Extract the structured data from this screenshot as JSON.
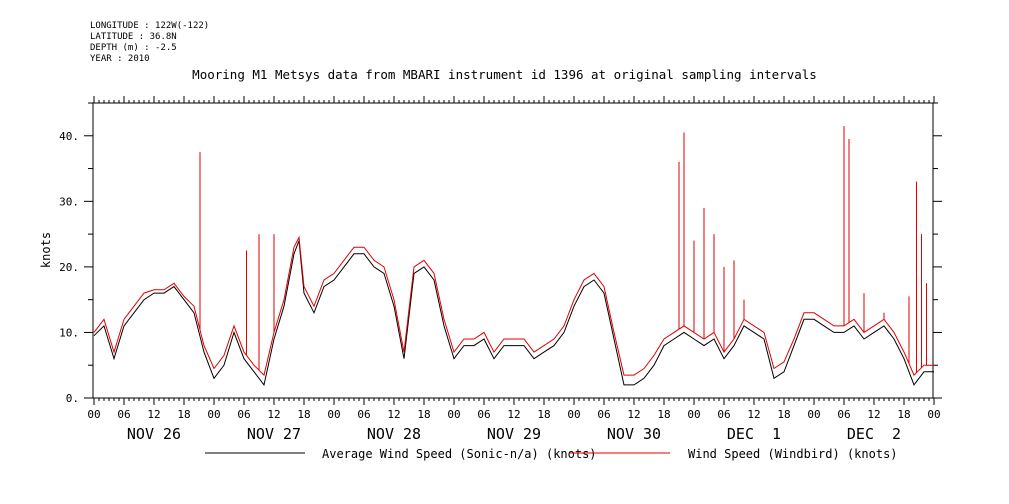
{
  "meta": {
    "longitude": "LONGITUDE : 122W(-122)",
    "latitude": "LATITUDE : 36.8N",
    "depth": "DEPTH (m) : -2.5",
    "year": "YEAR : 2010"
  },
  "chart_data": {
    "type": "line",
    "title": "Mooring M1 Metsys data from MBARI instrument id 1396 at original sampling intervals",
    "ylabel": "knots",
    "xlabel": "",
    "ylim": [
      0,
      45
    ],
    "xlim_hours": [
      0,
      168
    ],
    "y_ticks": [
      "0.",
      "10.",
      "20.",
      "30.",
      "40."
    ],
    "hour_ticks": [
      "00",
      "06",
      "12",
      "18",
      "00",
      "06",
      "12",
      "18",
      "00",
      "06",
      "12",
      "18",
      "00",
      "06",
      "12",
      "18",
      "00",
      "06",
      "12",
      "18",
      "00",
      "06",
      "12",
      "18",
      "00",
      "06",
      "12",
      "18",
      "00"
    ],
    "day_labels": [
      "NOV 26",
      "NOV 27",
      "NOV 28",
      "NOV 29",
      "NOV 30",
      "DEC  1",
      "DEC  2"
    ],
    "grid": false,
    "legend_position": "bottom",
    "series": [
      {
        "name": "Average Wind Speed (Sonic-n/a) (knots)",
        "color": "#000000",
        "x_hours": [
          0,
          2,
          4,
          6,
          8,
          10,
          12,
          14,
          16,
          18,
          20,
          22,
          24,
          26,
          28,
          30,
          32,
          34,
          36,
          38,
          40,
          41,
          42,
          44,
          46,
          48,
          50,
          52,
          54,
          56,
          58,
          60,
          62,
          64,
          66,
          68,
          70,
          72,
          74,
          76,
          78,
          80,
          82,
          84,
          86,
          88,
          90,
          92,
          94,
          96,
          98,
          100,
          102,
          104,
          106,
          108,
          110,
          112,
          114,
          116,
          118,
          120,
          122,
          124,
          126,
          128,
          130,
          132,
          134,
          136,
          138,
          140,
          142,
          144,
          146,
          148,
          150,
          152,
          154,
          156,
          158,
          160,
          162,
          164,
          166,
          168
        ],
        "values": [
          9.5,
          11,
          6,
          11,
          13,
          15,
          16,
          16,
          17,
          15,
          13,
          7,
          3,
          5,
          10,
          6,
          4,
          2,
          9,
          14,
          22,
          24,
          16,
          13,
          17,
          18,
          20,
          22,
          22,
          20,
          19,
          14,
          6,
          19,
          20,
          18,
          11,
          6,
          8,
          8,
          9,
          6,
          8,
          8,
          8,
          6,
          7,
          8,
          10,
          14,
          17,
          18,
          16,
          9,
          2,
          2,
          3,
          5,
          8,
          9,
          10,
          9,
          8,
          9,
          6,
          8,
          11,
          10,
          9,
          3,
          4,
          8,
          12,
          12,
          11,
          10,
          10,
          11,
          9,
          10,
          11,
          9,
          6,
          2,
          4,
          4
        ]
      },
      {
        "name": "Wind Speed (Windbird) (knots)",
        "color": "#e00000",
        "x_hours": [
          0,
          2,
          4,
          6,
          8,
          10,
          12,
          14,
          16,
          18,
          20,
          22,
          24,
          26,
          28,
          30,
          32,
          34,
          36,
          38,
          40,
          41,
          42,
          44,
          46,
          48,
          50,
          52,
          54,
          56,
          58,
          60,
          62,
          64,
          66,
          68,
          70,
          72,
          74,
          76,
          78,
          80,
          82,
          84,
          86,
          88,
          90,
          92,
          94,
          96,
          98,
          100,
          102,
          104,
          106,
          108,
          110,
          112,
          114,
          116,
          118,
          120,
          122,
          124,
          126,
          128,
          130,
          132,
          134,
          136,
          138,
          140,
          142,
          144,
          146,
          148,
          150,
          152,
          154,
          156,
          158,
          160,
          162,
          164,
          166,
          168
        ],
        "values": [
          10,
          12,
          7,
          12,
          14,
          16,
          16.5,
          16.5,
          17.5,
          15.5,
          14,
          8,
          4.5,
          6.5,
          11,
          7,
          5,
          3.5,
          10,
          15,
          23,
          24.5,
          17,
          14,
          18,
          19,
          21,
          23,
          23,
          21,
          20,
          15,
          7,
          20,
          21,
          19,
          12,
          7,
          9,
          9,
          10,
          7,
          9,
          9,
          9,
          7,
          8,
          9,
          11,
          15,
          18,
          19,
          17,
          10,
          3.5,
          3.5,
          4.5,
          6.5,
          9,
          10,
          11,
          10,
          9,
          10,
          7,
          9,
          12,
          11,
          10,
          4.5,
          5.5,
          9,
          13,
          13,
          12,
          11,
          11,
          12,
          10,
          11,
          12,
          10,
          7,
          3.5,
          5,
          5
        ],
        "spikes": [
          [
            21.2,
            37.5
          ],
          [
            30.5,
            22.5
          ],
          [
            33,
            25
          ],
          [
            36,
            25
          ],
          [
            117,
            36
          ],
          [
            118,
            40.5
          ],
          [
            120,
            24
          ],
          [
            122,
            29
          ],
          [
            124,
            25
          ],
          [
            126,
            20
          ],
          [
            128,
            21
          ],
          [
            130,
            15
          ],
          [
            150,
            41.5
          ],
          [
            151,
            39.5
          ],
          [
            154,
            16
          ],
          [
            158,
            13
          ],
          [
            163,
            15.5
          ],
          [
            164.5,
            33
          ],
          [
            165.5,
            25
          ],
          [
            166.5,
            17.5
          ]
        ]
      }
    ]
  }
}
